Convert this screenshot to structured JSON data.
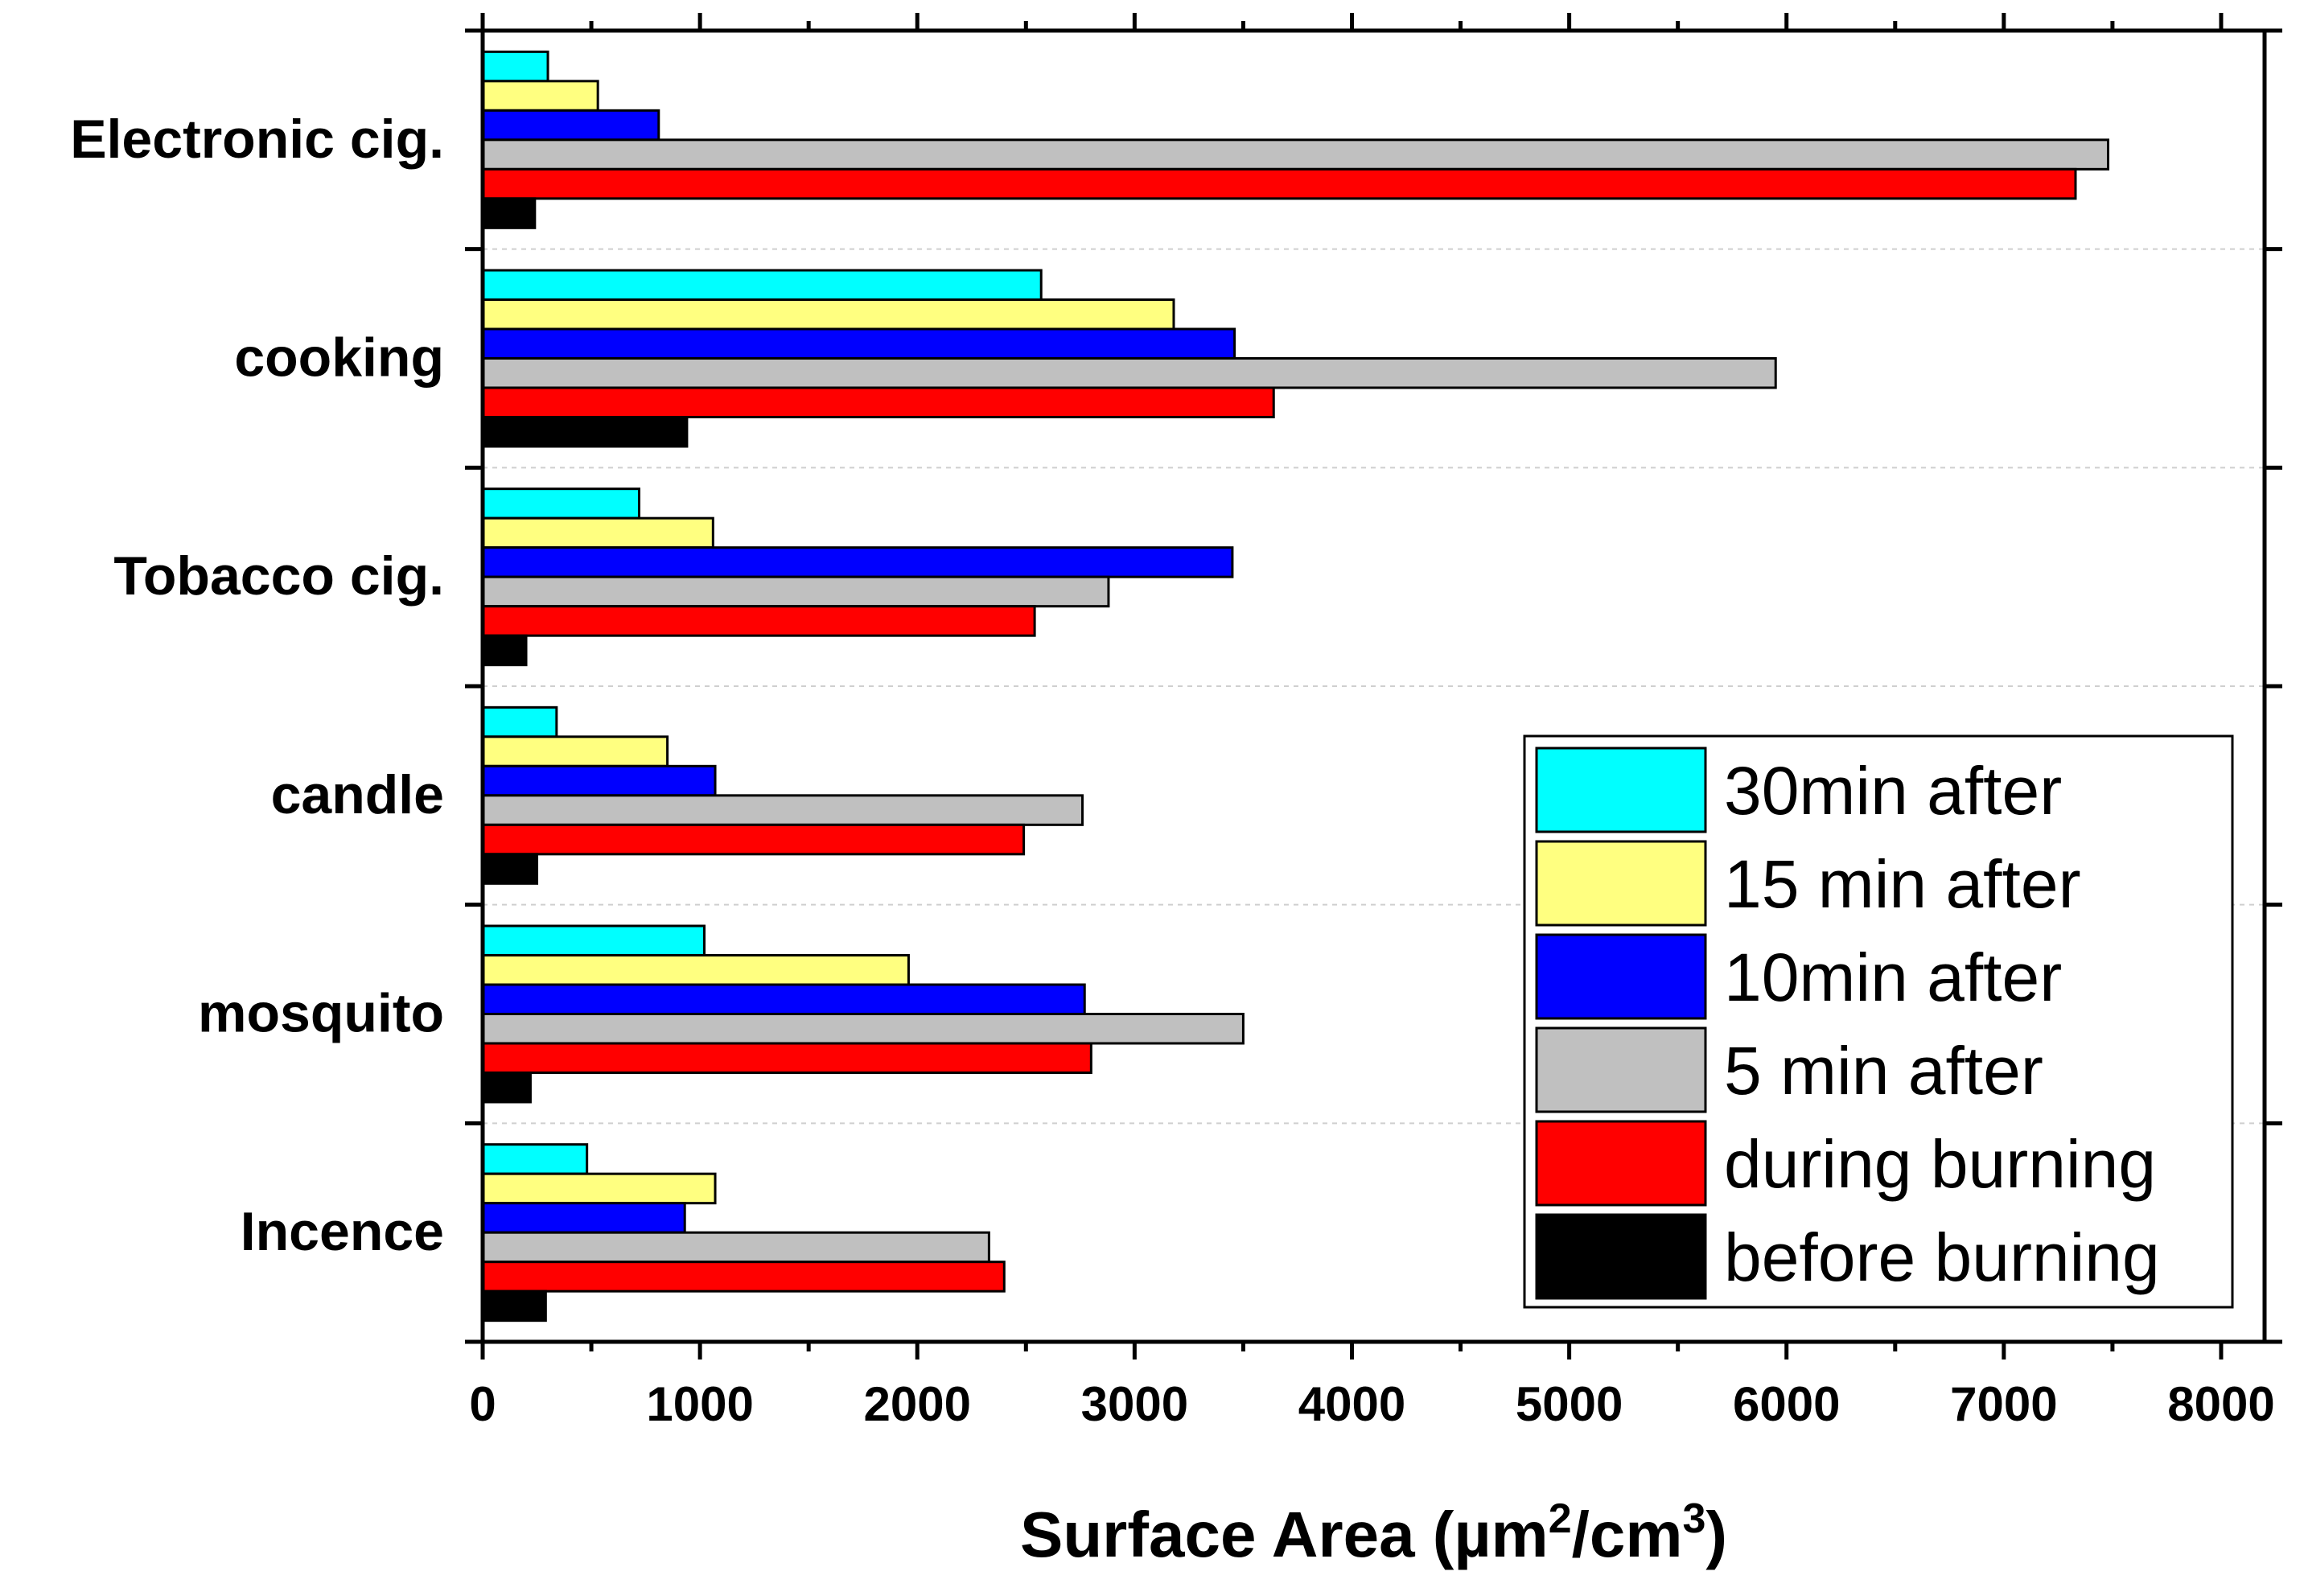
{
  "chart_data": {
    "type": "bar",
    "orientation": "horizontal",
    "title": "",
    "xlabel_parts": {
      "prefix": "Surface Area (",
      "unit1": "µm",
      "sup1": "2",
      "middle": "/cm",
      "sup2": "3",
      "suffix": ")"
    },
    "ylabel": "",
    "xlim": [
      0,
      8200
    ],
    "xticks": [
      0,
      1000,
      2000,
      3000,
      4000,
      5000,
      6000,
      7000,
      8000
    ],
    "grid": "horizontal-dashed",
    "legend_position": "bottom-right",
    "categories": [
      "Electronic cig.",
      "cooking",
      "Tobacco cig.",
      "candle",
      "mosquito",
      "Incence"
    ],
    "series": [
      {
        "name": "30min after",
        "color": "#00ffff",
        "values": [
          300,
          2570,
          720,
          340,
          1020,
          480
        ]
      },
      {
        "name": "15 min after",
        "color": "#ffff80",
        "values": [
          530,
          3180,
          1060,
          850,
          1960,
          1070
        ]
      },
      {
        "name": "10min after",
        "color": "#0000ff",
        "values": [
          810,
          3460,
          3450,
          1070,
          2770,
          930
        ]
      },
      {
        "name": "5 min after",
        "color": "#c0c0c0",
        "values": [
          7480,
          5950,
          2880,
          2760,
          3500,
          2330
        ]
      },
      {
        "name": "during burning",
        "color": "#ff0000",
        "values": [
          7330,
          3640,
          2540,
          2490,
          2800,
          2400
        ]
      },
      {
        "name": "before burning",
        "color": "#000000",
        "values": [
          240,
          940,
          200,
          250,
          220,
          290
        ]
      }
    ]
  }
}
